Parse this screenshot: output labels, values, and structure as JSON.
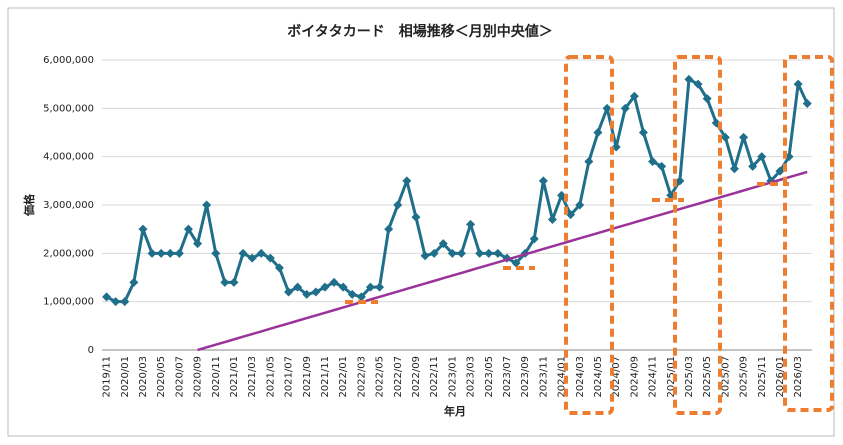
{
  "chart_data": {
    "type": "line",
    "title": "ボイタタカード　相場推移＜月別中央値＞",
    "x_label": "年月",
    "y_label": "価格",
    "categories": [
      "2019/11",
      null,
      "2020/01",
      null,
      "2020/03",
      null,
      "2020/05",
      null,
      "2020/07",
      null,
      "2020/09",
      null,
      "2020/11",
      null,
      "2021/01",
      null,
      "2021/03",
      null,
      "2021/05",
      null,
      "2021/07",
      null,
      "2021/09",
      null,
      "2021/11",
      null,
      "2022/01",
      null,
      "2022/03",
      null,
      "2022/05",
      null,
      "2022/07",
      null,
      "2022/09",
      null,
      "2022/11",
      null,
      "2023/01",
      null,
      "2023/03",
      null,
      "2023/05",
      null,
      "2023/07",
      null,
      "2023/09",
      null,
      "2023/11",
      null,
      "2024/01",
      null,
      "2024/03",
      null,
      "2024/05",
      null,
      "2024/07",
      null,
      "2024/09",
      null,
      "2024/11",
      null,
      "2025/01",
      null,
      "2025/03",
      null,
      "2025/05",
      null,
      "2025/07",
      null,
      "2025/09",
      null,
      "2025/11",
      null,
      "2026/01",
      null,
      "2026/03",
      null
    ],
    "series": [
      {
        "color": "#1f6f8b",
        "marker": "diamond",
        "values": [
          1100000,
          1000000,
          1000000,
          1400000,
          2500000,
          2000000,
          2000000,
          2000000,
          2000000,
          2500000,
          2200000,
          3000000,
          2000000,
          1400000,
          1400000,
          2000000,
          1900000,
          2000000,
          1900000,
          1700000,
          1200000,
          1300000,
          1150000,
          1200000,
          1300000,
          1400000,
          1300000,
          1150000,
          1100000,
          1300000,
          1300000,
          2500000,
          3000000,
          3500000,
          2750000,
          1950000,
          2000000,
          2200000,
          2000000,
          2000000,
          2600000,
          2000000,
          2000000,
          2000000,
          1900000,
          1800000,
          2000000,
          2300000,
          3500000,
          2700000,
          3200000,
          2800000,
          3000000,
          3900000,
          4500000,
          5000000,
          4200000,
          5000000,
          5250000,
          4500000,
          3900000,
          3800000,
          3200000,
          3500000,
          5600000,
          5500000,
          5200000,
          4700000,
          4400000,
          3750000,
          4400000,
          3800000,
          4000000,
          3500000,
          3700000,
          4000000,
          5500000,
          5100000
        ]
      },
      {
        "color": "#993399",
        "marker": "none",
        "values": [
          null,
          null,
          null,
          null,
          null,
          null,
          null,
          null,
          null,
          null,
          0,
          55000,
          110000,
          165000,
          220000,
          275000,
          330000,
          385000,
          440000,
          495000,
          550000,
          605000,
          660000,
          715000,
          770000,
          825000,
          880000,
          935000,
          990000,
          1045000,
          1100000,
          1155000,
          1210000,
          1265000,
          1320000,
          1375000,
          1430000,
          1485000,
          1540000,
          1595000,
          1650000,
          1705000,
          1760000,
          1815000,
          1870000,
          1925000,
          1980000,
          2035000,
          2090000,
          2145000,
          2200000,
          2255000,
          2310000,
          2365000,
          2420000,
          2475000,
          2530000,
          2585000,
          2640000,
          2695000,
          2750000,
          2805000,
          2860000,
          2915000,
          2970000,
          3025000,
          3080000,
          3135000,
          3190000,
          3245000,
          3300000,
          3355000,
          3410000,
          3465000,
          3520000,
          3575000,
          3630000,
          3685000
        ]
      }
    ],
    "ylim": [
      0,
      6000000
    ],
    "yticks": [
      0,
      {
        "value": 1000000,
        "label": "1,000,000"
      },
      {
        "value": 2000000,
        "label": "2,000,000"
      },
      {
        "value": 3000000,
        "label": "3,000,000"
      },
      {
        "value": 4000000,
        "label": "4,000,000"
      },
      {
        "value": 5000000,
        "label": "5,000,000"
      },
      {
        "value": 6000000,
        "label": "6,000,000"
      }
    ],
    "grid": true
  }
}
